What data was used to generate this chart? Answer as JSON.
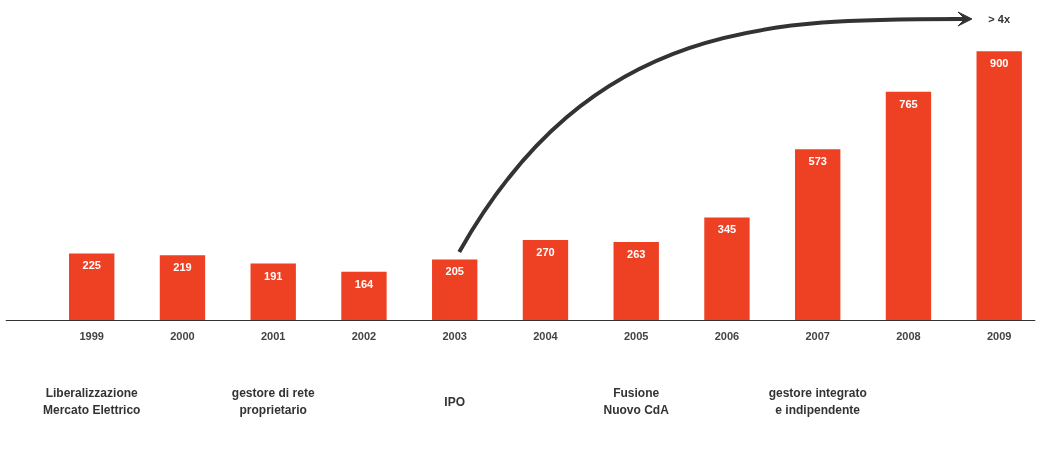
{
  "chart_data": {
    "type": "bar",
    "categories": [
      "1999",
      "2000",
      "2001",
      "2002",
      "2003",
      "2004",
      "2005",
      "2006",
      "2007",
      "2008",
      "2009"
    ],
    "values": [
      225,
      219,
      191,
      164,
      205,
      270,
      263,
      345,
      573,
      765,
      900
    ],
    "color": "#ee4124",
    "data_labels": true,
    "grid": false,
    "annotations": [
      "> 4x",
      "Liberalizzazione\nMercato Elettrico",
      "gestore di rete\nproprietario",
      "IPO",
      "Fusione\nNuovo CdA",
      "gestore integrato\ne indipendente"
    ]
  }
}
